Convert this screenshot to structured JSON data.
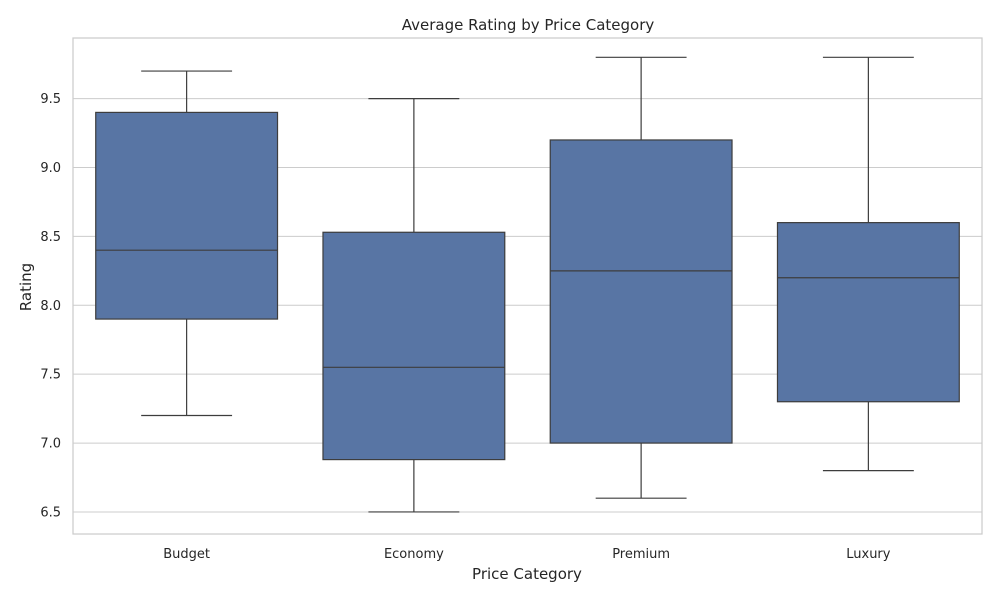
{
  "chart_data": {
    "type": "box",
    "title": "Average Rating by Price Category",
    "xlabel": "Price Category",
    "ylabel": "Rating",
    "ylim": [
      6.34,
      9.94
    ],
    "yticks": [
      "6.5",
      "7.0",
      "7.5",
      "8.0",
      "8.5",
      "9.0",
      "9.5"
    ],
    "grid": "horizontal",
    "box_color": "#5875a4",
    "line_color": "#3d3d3d",
    "categories": [
      "Budget",
      "Economy",
      "Premium",
      "Luxury"
    ],
    "boxes": [
      {
        "category": "Budget",
        "whisker_low": 7.2,
        "q1": 7.9,
        "median": 8.4,
        "q3": 9.4,
        "whisker_high": 9.7
      },
      {
        "category": "Economy",
        "whisker_low": 6.5,
        "q1": 6.88,
        "median": 7.55,
        "q3": 8.53,
        "whisker_high": 9.5
      },
      {
        "category": "Premium",
        "whisker_low": 6.6,
        "q1": 7.0,
        "median": 8.25,
        "q3": 9.2,
        "whisker_high": 9.8
      },
      {
        "category": "Luxury",
        "whisker_low": 6.8,
        "q1": 7.3,
        "median": 8.2,
        "q3": 8.6,
        "whisker_high": 9.8
      }
    ]
  }
}
